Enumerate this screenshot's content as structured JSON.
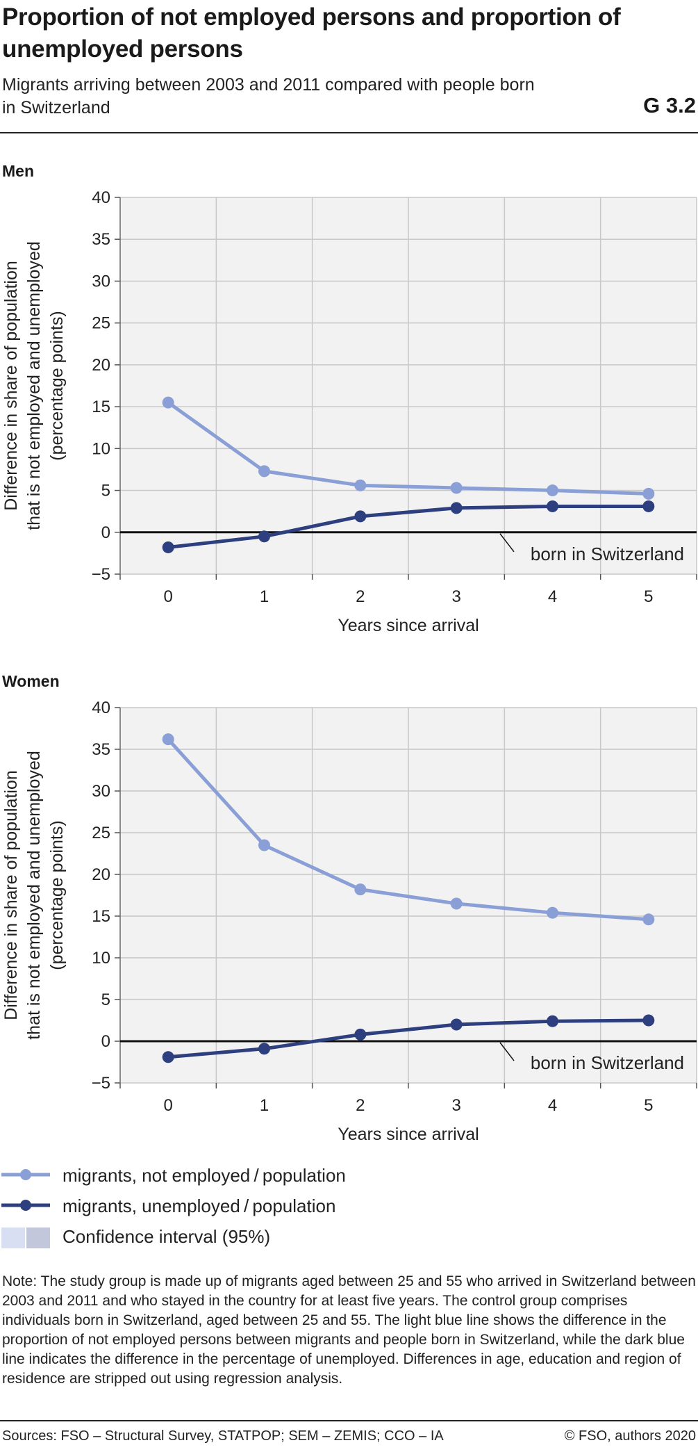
{
  "header": {
    "title": "Proportion of not employed persons and proportion of unemployed persons",
    "subtitle": "Migrants arriving between 2003 and 2011 compared with people born in Switzerland",
    "graphic_id": "G 3.2"
  },
  "colors": {
    "light_series": "#8a9fd6",
    "dark_series": "#2e3f7f",
    "plot_bg": "#f2f2f2",
    "grid": "#c8c8c8",
    "ci_light": "#d9dff2",
    "ci_dark": "#c3c7dc"
  },
  "chart_data": [
    {
      "type": "line",
      "panel_title": "Men",
      "x": [
        0,
        1,
        2,
        3,
        4,
        5
      ],
      "xlabel": "Years since arrival",
      "ylabel": [
        "Difference in share of population",
        "that is not employed and unemployed",
        "(percentage points)"
      ],
      "ylim": [
        -5,
        40
      ],
      "yticks": [
        40,
        35,
        30,
        25,
        20,
        15,
        10,
        5,
        0,
        -5
      ],
      "ytick_labels": [
        "40",
        "35",
        "30",
        "25",
        "20",
        "15",
        "10",
        "5",
        "0",
        "−5"
      ],
      "grid": true,
      "reference_line": {
        "y": 0,
        "label": "born in Switzerland"
      },
      "series": [
        {
          "name": "migrants, not employed / population",
          "values": [
            15.5,
            7.3,
            5.6,
            5.3,
            5.0,
            4.6
          ]
        },
        {
          "name": "migrants, unemployed / population",
          "values": [
            -1.8,
            -0.5,
            1.9,
            2.9,
            3.1,
            3.1
          ]
        }
      ]
    },
    {
      "type": "line",
      "panel_title": "Women",
      "x": [
        0,
        1,
        2,
        3,
        4,
        5
      ],
      "xlabel": "Years since arrival",
      "ylabel": [
        "Difference in share of population",
        "that is not employed and unemployed",
        "(percentage points)"
      ],
      "ylim": [
        -5,
        40
      ],
      "yticks": [
        40,
        35,
        30,
        25,
        20,
        15,
        10,
        5,
        0,
        -5
      ],
      "ytick_labels": [
        "40",
        "35",
        "30",
        "25",
        "20",
        "15",
        "10",
        "5",
        "0",
        "−5"
      ],
      "grid": true,
      "reference_line": {
        "y": 0,
        "label": "born in Switzerland"
      },
      "series": [
        {
          "name": "migrants, not employed / population",
          "values": [
            36.2,
            23.5,
            18.2,
            16.5,
            15.4,
            14.6
          ]
        },
        {
          "name": "migrants, unemployed / population",
          "values": [
            -1.9,
            -0.9,
            0.8,
            2.0,
            2.4,
            2.5
          ]
        }
      ]
    }
  ],
  "legend": {
    "not_employed": "migrants, not employed / population",
    "unemployed": "migrants, unemployed / population",
    "ci": "Confidence interval (95%)"
  },
  "note": "Note: The study group is made up of migrants aged between 25 and 55 who arrived in Switzerland between 2003 and 2011 and who stayed in the country for at least five years. The control group comprises individuals born in Switzerland, aged between 25 and 55. The light blue line shows the difference in the proportion of not employed persons between migrants and people born in Switzerland, while the dark blue line indicates the difference in the percentage of unemployed. Differences in age, education and region of residence are stripped out using regression analysis.",
  "footer": {
    "sources": "Sources: FSO – Structural Survey, STATPOP; SEM – ZEMIS; CCO – IA",
    "copyright": "© FSO, authors 2020"
  }
}
